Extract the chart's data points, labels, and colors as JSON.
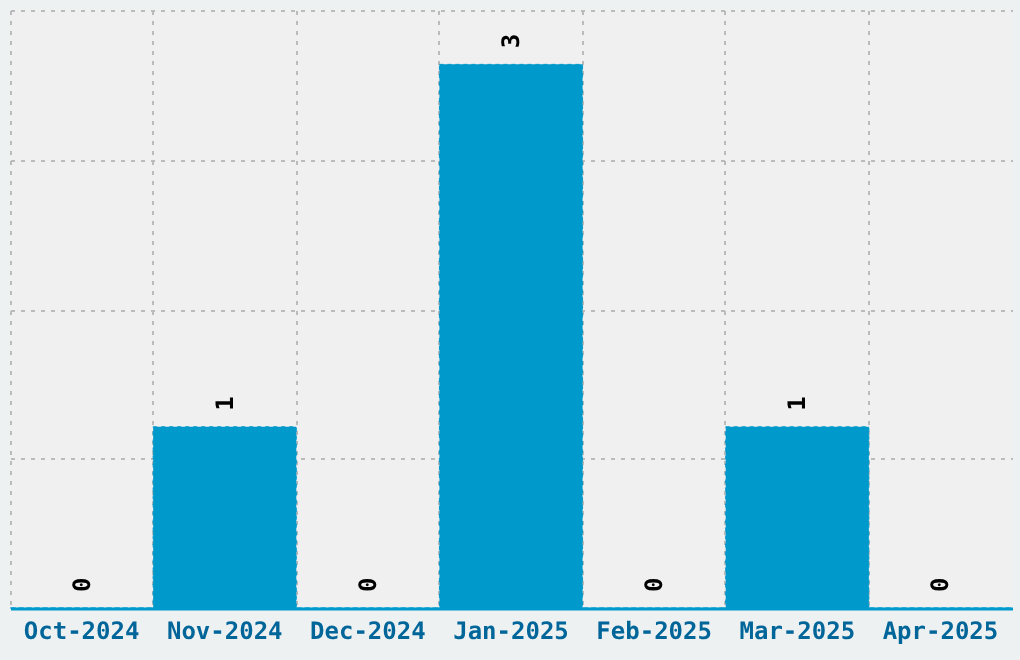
{
  "chart_data": {
    "type": "bar",
    "categories": [
      "Oct-2024",
      "Nov-2024",
      "Dec-2024",
      "Jan-2025",
      "Feb-2025",
      "Mar-2025",
      "Apr-2025"
    ],
    "values": [
      0,
      1,
      0,
      3,
      0,
      1,
      0
    ],
    "color": "#0099cc",
    "data_labels": true,
    "ylim": [
      0,
      3.3
    ],
    "yticks": [
      {
        "value": 0.825,
        "label": null
      },
      {
        "value": 1.65,
        "label": null
      },
      {
        "value": 2.475,
        "label": null
      },
      {
        "value": 3.3,
        "label": null
      }
    ],
    "grid": true,
    "tick_labels": "x"
  }
}
